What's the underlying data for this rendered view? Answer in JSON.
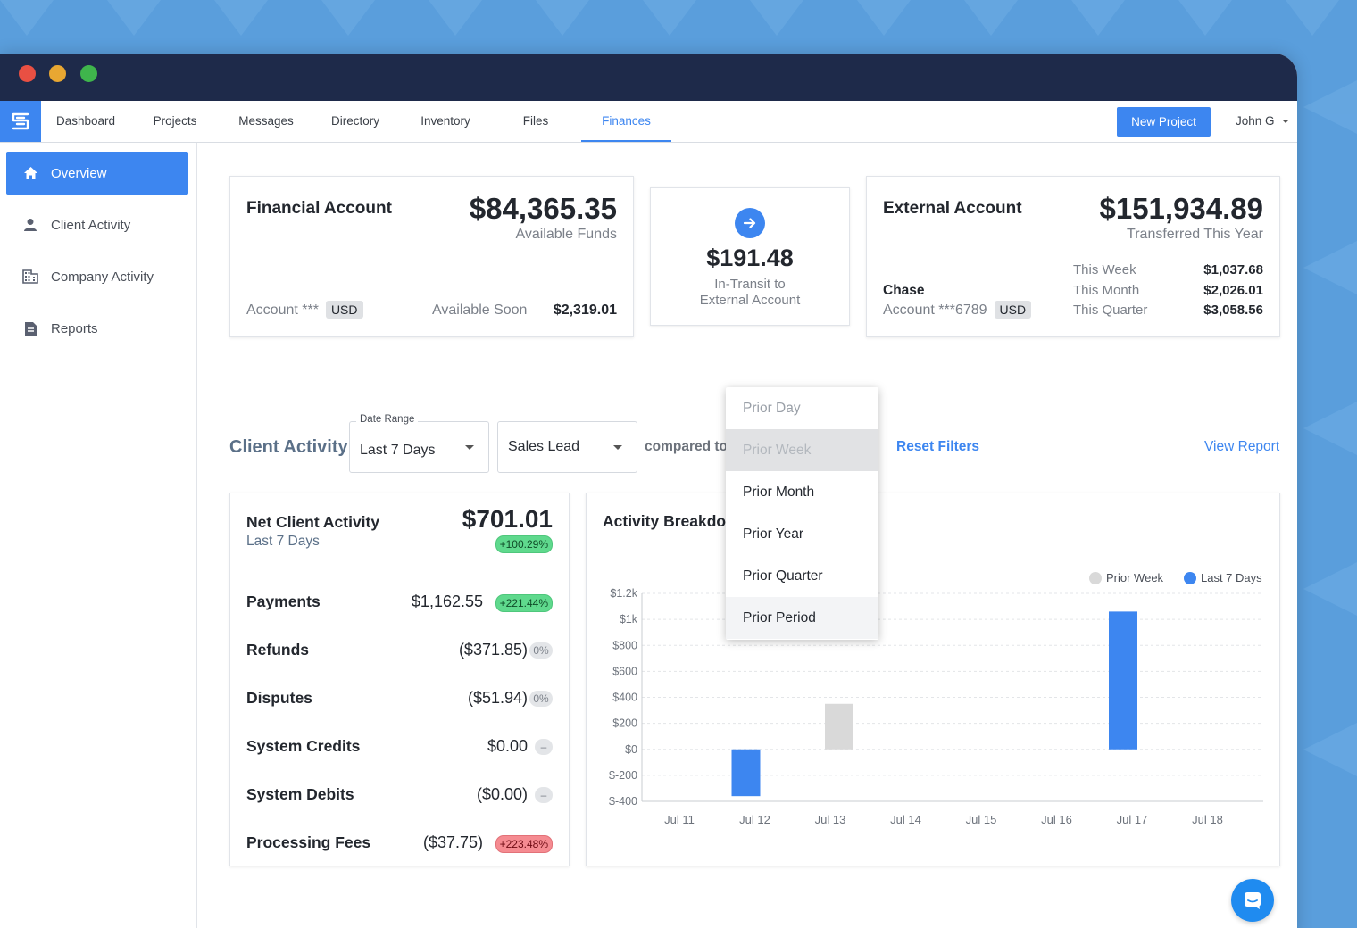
{
  "nav": {
    "items": [
      {
        "label": "Dashboard"
      },
      {
        "label": "Projects"
      },
      {
        "label": "Messages"
      },
      {
        "label": "Directory"
      },
      {
        "label": "Inventory"
      },
      {
        "label": "Files"
      },
      {
        "label": "Finances"
      }
    ],
    "active": "Finances",
    "new_project_label": "New Project",
    "user_name": "John G"
  },
  "sidebar": {
    "items": [
      {
        "label": "Overview",
        "icon": "home-icon",
        "active": true
      },
      {
        "label": "Client Activity",
        "icon": "person-icon",
        "active": false
      },
      {
        "label": "Company Activity",
        "icon": "building-icon",
        "active": false
      },
      {
        "label": "Reports",
        "icon": "document-icon",
        "active": false
      }
    ]
  },
  "financial_account": {
    "title": "Financial Account",
    "amount": "$84,365.35",
    "amount_caption": "Available Funds",
    "account_label": "Account ***",
    "currency": "USD",
    "available_soon_label": "Available Soon",
    "available_soon_value": "$2,319.01"
  },
  "transit": {
    "icon": "arrow-right-icon",
    "amount": "$191.48",
    "caption_line1": "In-Transit to",
    "caption_line2": "External Account"
  },
  "external_account": {
    "title": "External Account",
    "amount": "$151,934.89",
    "amount_caption": "Transferred This Year",
    "bank": "Chase",
    "account_label": "Account ***6789",
    "currency": "USD",
    "periods": [
      {
        "label": "This Week",
        "value": "$1,037.68"
      },
      {
        "label": "This Month",
        "value": "$2,026.01"
      },
      {
        "label": "This Quarter",
        "value": "$3,058.56"
      }
    ]
  },
  "filters": {
    "title": "Client Activity",
    "date_range_label": "Date Range",
    "date_range_value": "Last 7 Days",
    "sales_lead_value": "Sales Lead",
    "compared_to_label": "compared to",
    "reset_label": "Reset Filters",
    "view_report_label": "View Report"
  },
  "compare_dropdown": {
    "options": [
      {
        "label": "Prior Day",
        "state": "muted"
      },
      {
        "label": "Prior Week",
        "state": "disabled"
      },
      {
        "label": "Prior Month",
        "state": "normal"
      },
      {
        "label": "Prior Year",
        "state": "normal"
      },
      {
        "label": "Prior Quarter",
        "state": "normal"
      },
      {
        "label": "Prior Period",
        "state": "hover"
      }
    ]
  },
  "net_activity": {
    "title": "Net Client Activity",
    "period": "Last 7 Days",
    "amount": "$701.01",
    "change": "+100.29%",
    "rows": [
      {
        "label": "Payments",
        "amount": "$1,162.55",
        "badge": "+221.44%",
        "badge_type": "green"
      },
      {
        "label": "Refunds",
        "amount": "($371.85)",
        "badge": "0%",
        "badge_type": "grey"
      },
      {
        "label": "Disputes",
        "amount": "($51.94)",
        "badge": "0%",
        "badge_type": "grey"
      },
      {
        "label": "System Credits",
        "amount": "$0.00",
        "badge": "–",
        "badge_type": "grey"
      },
      {
        "label": "System Debits",
        "amount": "($0.00)",
        "badge": "–",
        "badge_type": "grey"
      },
      {
        "label": "Processing Fees",
        "amount": "($37.75)",
        "badge": "+223.48%",
        "badge_type": "red"
      }
    ]
  },
  "chart_data": {
    "type": "bar",
    "title": "Activity Breakdown",
    "categories": [
      "Jul 11",
      "Jul 12",
      "Jul 13",
      "Jul 14",
      "Jul 15",
      "Jul 16",
      "Jul 17",
      "Jul 18"
    ],
    "series": [
      {
        "name": "Prior Week",
        "color": "#d9d9d9",
        "values": [
          0,
          0,
          350,
          0,
          0,
          0,
          0,
          0
        ]
      },
      {
        "name": "Last 7 Days",
        "color": "#3d86f0",
        "values": [
          0,
          -360,
          0,
          0,
          0,
          0,
          1060,
          0
        ]
      }
    ],
    "ylim": [
      -400,
      1200
    ],
    "yticks": [
      "$-400",
      "$-200",
      "$0",
      "$200",
      "$400",
      "$600",
      "$800",
      "$1k",
      "$1.2k"
    ],
    "ytick_values": [
      -400,
      -200,
      0,
      200,
      400,
      600,
      800,
      1000,
      1200
    ],
    "grid": true,
    "legend_position": "top-right"
  }
}
